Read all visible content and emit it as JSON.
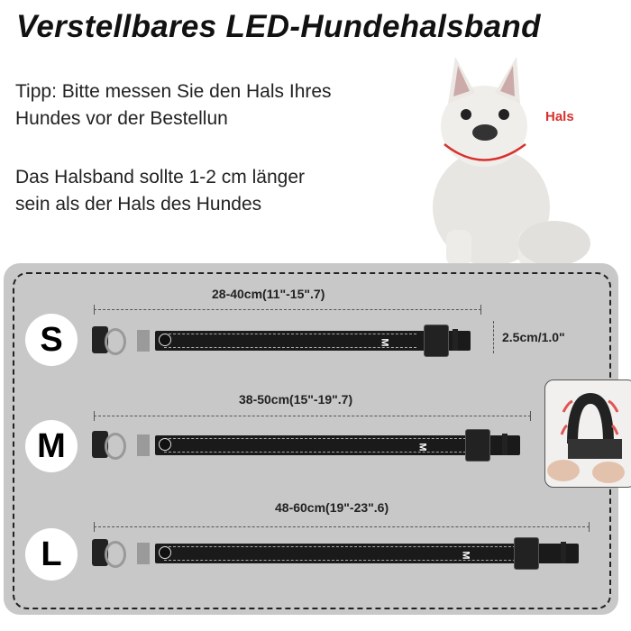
{
  "title": "Verstellbares LED-Hundehalsband",
  "tip_lines": [
    "Tipp: Bitte messen Sie den Hals Ihres",
    "Hundes vor der Bestellun"
  ],
  "note_lines": [
    "Das Halsband sollte 1-2 cm länger",
    "sein als der Hals des Hundes"
  ],
  "dog_label": "Hals",
  "accent_color": "#d9302c",
  "sizes": [
    {
      "letter": "S",
      "range": "28-40cm(11\"-15\".7)",
      "tag": "M"
    },
    {
      "letter": "M",
      "range": "38-50cm(15\"-19\".7)",
      "tag": "M"
    },
    {
      "letter": "L",
      "range": "48-60cm(19\"-23\".6)",
      "tag": "M"
    }
  ],
  "width_label": "2.5cm/1.0\""
}
